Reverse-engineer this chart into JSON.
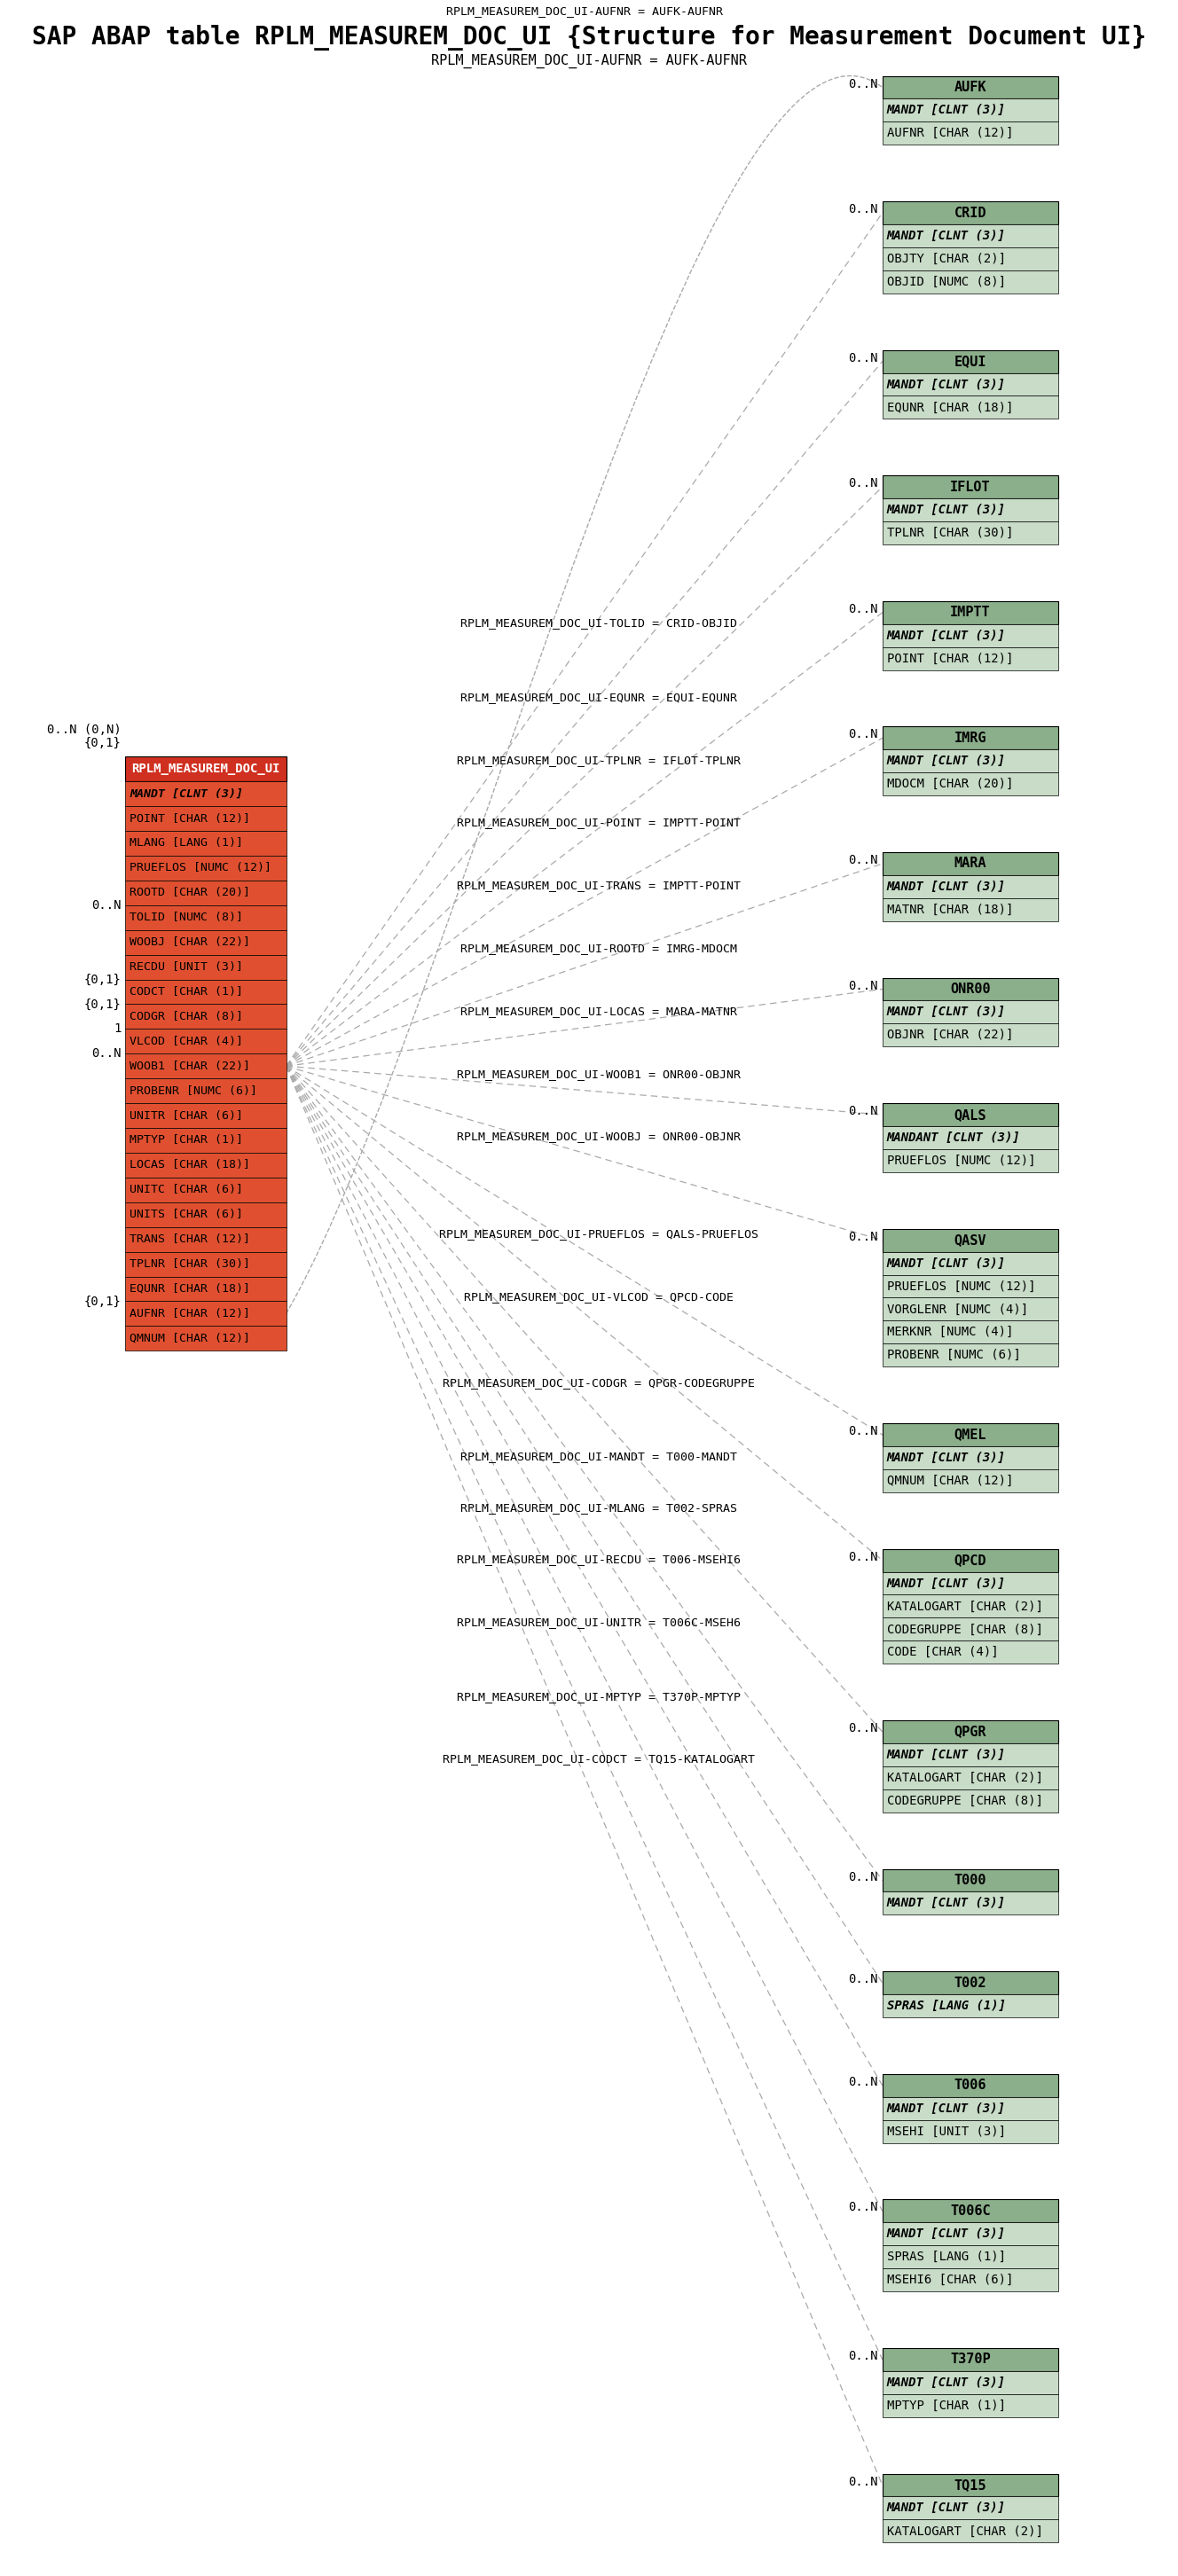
{
  "title": "SAP ABAP table RPLM_MEASUREM_DOC_UI {Structure for Measurement Document UI}",
  "subtitle": "RPLM_MEASUREM_DOC_UI-AUFNR = AUFK-AUFNR",
  "center_table": {
    "name": "RPLM_MEASUREM_DOC_UI",
    "fields": [
      "MANDT [CLNT (3)]",
      "POINT [CHAR (12)]",
      "MLANG [LANG (1)]",
      "PRUEFLOS [NUMC (12)]",
      "ROOTD [CHAR (20)]",
      "TOLID [NUMC (8)]",
      "WOOBJ [CHAR (22)]",
      "RECDU [UNIT (3)]",
      "CODCT [CHAR (1)]",
      "CODGR [CHAR (8)]",
      "VLCOD [CHAR (4)]",
      "WOOB1 [CHAR (22)]",
      "PROBENR [NUMC (6)]",
      "UNITR [CHAR (6)]",
      "MPTYP [CHAR (1)]",
      "LOCAS [CHAR (18)]",
      "UNITC [CHAR (6)]",
      "UNITS [CHAR (6)]",
      "TRANS [CHAR (12)]",
      "TPLNR [CHAR (30)]",
      "EQUNR [CHAR (18)]",
      "AUFNR [CHAR (12)]",
      "QMNUM [CHAR (12)]"
    ]
  },
  "right_tables": [
    {
      "name": "AUFK",
      "header_italic": false,
      "fields": [
        "MANDT [CLNT (3)]",
        "AUFNR [CHAR (12)]"
      ],
      "rel_label": "RPLM_MEASUREM_DOC_UI-AUFNR = AUFK-AUFNR",
      "card": "0..N",
      "arc": true
    },
    {
      "name": "CRID",
      "header_italic": false,
      "fields": [
        "MANDT [CLNT (3)]",
        "OBJTY [CHAR (2)]",
        "OBJID [NUMC (8)]"
      ],
      "rel_label": "RPLM_MEASUREM_DOC_UI-TOLID = CRID-OBJID",
      "card": "0..N",
      "arc": false
    },
    {
      "name": "EQUI",
      "header_italic": false,
      "fields": [
        "MANDT [CLNT (3)]",
        "EQUNR [CHAR (18)]"
      ],
      "rel_label": "RPLM_MEASUREM_DOC_UI-EQUNR = EQUI-EQUNR",
      "card": "0..N",
      "arc": false
    },
    {
      "name": "IFLOT",
      "header_italic": false,
      "fields": [
        "MANDT [CLNT (3)]",
        "TPLNR [CHAR (30)]"
      ],
      "rel_label": "RPLM_MEASUREM_DOC_UI-TPLNR = IFLOT-TPLNR",
      "card": "0..N",
      "arc": false
    },
    {
      "name": "IMPTT",
      "header_italic": false,
      "fields": [
        "MANDT [CLNT (3)]",
        "POINT [CHAR (12)]"
      ],
      "rel_label": "RPLM_MEASUREM_DOC_UI-POINT = IMPTT-POINT",
      "card": "0..N",
      "arc": false
    },
    {
      "name": "IMRG",
      "header_italic": false,
      "fields": [
        "MANDT [CLNT (3)]",
        "MDOCM [CHAR (20)]"
      ],
      "rel_label": "RPLM_MEASUREM_DOC_UI-TRANS = IMPTT-POINT",
      "card": "0..N",
      "arc": false
    },
    {
      "name": "MARA",
      "header_italic": false,
      "fields": [
        "MANDT [CLNT (3)]",
        "MATNR [CHAR (18)]"
      ],
      "rel_label": "RPLM_MEASUREM_DOC_UI-ROOTD = IMRG-MDOCM",
      "card": "0..N",
      "arc": false
    },
    {
      "name": "ONR00",
      "header_italic": false,
      "fields": [
        "MANDT [CLNT (3)]",
        "OBJNR [CHAR (22)]"
      ],
      "rel_label": "RPLM_MEASUREM_DOC_UI-LOCAS = MARA-MATNR",
      "card": "0..N",
      "arc": false
    },
    {
      "name": "QALS",
      "header_italic": false,
      "fields": [
        "MANDANT [CLNT (3)]",
        "PRUEFLOS [NUMC (12)]"
      ],
      "rel_label": "RPLM_MEASUREM_DOC_UI-WOOB1 = ONR00-OBJNR",
      "card": "0..N",
      "arc": false
    },
    {
      "name": "QASV",
      "header_italic": false,
      "fields": [
        "MANDT [CLNT (3)]",
        "PRUEFLOS [NUMC (12)]",
        "VORGLENR [NUMC (4)]",
        "MERKNR [NUMC (4)]",
        "PROBENR [NUMC (6)]"
      ],
      "rel_label": "RPLM_MEASUREM_DOC_UI-WOOBJ = ONR00-OBJNR",
      "card": "0..N",
      "arc": false
    },
    {
      "name": "QMEL",
      "header_italic": false,
      "fields": [
        "MANDT [CLNT (3)]",
        "QMNUM [CHAR (12)]"
      ],
      "rel_label": "RPLM_MEASUREM_DOC_UI-PRUEFLOS = QALS-PRUEFLOS",
      "card": "0..N",
      "arc": false
    },
    {
      "name": "QPCD",
      "header_italic": false,
      "fields": [
        "MANDT [CLNT (3)]",
        "KATALOGART [CHAR (2)]",
        "CODEGRUPPE [CHAR (8)]",
        "CODE [CHAR (4)]"
      ],
      "rel_label": "RPLM_MEASUREM_DOC_UI-VLCOD = QPCD-CODE",
      "card": "0..N",
      "arc": false
    },
    {
      "name": "QPGR",
      "header_italic": false,
      "fields": [
        "MANDT [CLNT (3)]",
        "KATALOGART [CHAR (2)]",
        "CODEGRUPPE [CHAR (8)]"
      ],
      "rel_label": "RPLM_MEASUREM_DOC_UI-CODGR = QPGR-CODEGRUPPE",
      "card": "0..N",
      "arc": false
    },
    {
      "name": "T000",
      "header_italic": false,
      "fields": [
        "MANDT [CLNT (3)]"
      ],
      "rel_label": "RPLM_MEASUREM_DOC_UI-MANDT = T000-MANDT",
      "card": "0..N",
      "arc": false
    },
    {
      "name": "T002",
      "header_italic": false,
      "fields": [
        "SPRAS [LANG (1)]"
      ],
      "rel_label": "RPLM_MEASUREM_DOC_UI-MLANG = T002-SPRAS",
      "card": "0..N",
      "arc": false
    },
    {
      "name": "T006",
      "header_italic": false,
      "fields": [
        "MANDT [CLNT (3)]",
        "MSEHI [UNIT (3)]"
      ],
      "rel_label": "RPLM_MEASUREM_DOC_UI-RECDU = T006-MSEHI6",
      "card": "0..N",
      "arc": false
    },
    {
      "name": "T006C",
      "header_italic": false,
      "fields": [
        "MANDT [CLNT (3)]",
        "SPRAS [LANG (1)]",
        "MSEHI6 [CHAR (6)]"
      ],
      "rel_label": "RPLM_MEASUREM_DOC_UI-UNITR = T006C-MSEH6",
      "card": "0..N",
      "arc": false
    },
    {
      "name": "T370P",
      "header_italic": false,
      "fields": [
        "MANDT [CLNT (3)]",
        "MPTYP [CHAR (1)]"
      ],
      "rel_label": "RPLM_MEASUREM_DOC_UI-MPTYP = T370P-MPTYP",
      "card": "0..N",
      "arc": false
    },
    {
      "name": "TQ15",
      "header_italic": false,
      "fields": [
        "MANDT [CLNT (3)]",
        "KATALOGART [CHAR (2)]"
      ],
      "rel_label": "RPLM_MEASUREM_DOC_UI-CODCT = TQ15-KATALOGART",
      "card": "0..N",
      "arc": false
    }
  ],
  "center_bg": "#E05030",
  "center_header_bg": "#D03020",
  "center_text": "#000000",
  "right_header_bg": "#8BAE8B",
  "right_field_bg": "#C8DCC8",
  "right_text": "#000000",
  "line_color": "#AAAAAA",
  "cardinalities_left": [
    "0..N (0,N)",
    "{0,1}",
    "0..N",
    "{0,1}",
    "{0,1}",
    "1",
    "0..N",
    "{0,1}"
  ],
  "bg_color": "#FFFFFF"
}
